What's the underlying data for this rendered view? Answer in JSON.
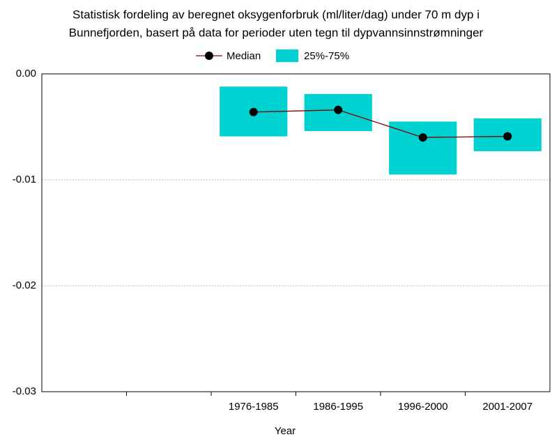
{
  "chart_data": {
    "type": "box",
    "title": [
      "Statistisk fordeling av beregnet oksygenforbruk (ml/liter/dag) under 70 m dyp i",
      "Bunnefjorden, basert på data for perioder uten tegn til dypvannsinnstrømninger"
    ],
    "x_label": "Year",
    "categories": [
      null,
      null,
      "1976-1985",
      "1986-1995",
      "1996-2000",
      "2001-2007"
    ],
    "series": [
      {
        "name": "Median",
        "color": "#800000",
        "values": [
          null,
          null,
          -0.0036,
          -0.0034,
          -0.006,
          -0.0059
        ]
      },
      {
        "name": "25%-75%",
        "color": "#00d2d2",
        "q25": [
          null,
          null,
          -0.0059,
          -0.0054,
          -0.0095,
          -0.0073
        ],
        "q75": [
          null,
          null,
          -0.0012,
          -0.0019,
          -0.0045,
          -0.0042
        ]
      }
    ],
    "ylim": [
      -0.03,
      0
    ],
    "yticks": [
      {
        "value": 0,
        "label": "0.00"
      },
      -0.01,
      -0.02,
      -0.03
    ],
    "grid": true
  }
}
